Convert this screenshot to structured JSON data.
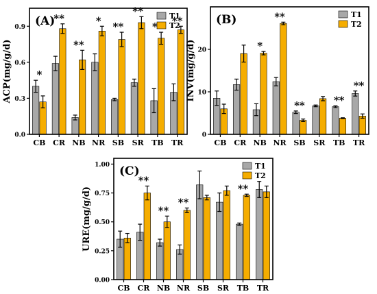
{
  "colors": {
    "T1": "#a8a8a8",
    "T2": "#f5ad00",
    "frame": "#000000"
  },
  "chart_data": [
    {
      "type": "bar",
      "panel_label": "(A)",
      "ylabel": "ACP(mg/g/d)",
      "ylim": [
        0.0,
        1.05
      ],
      "yticks": [
        "0.0",
        "0.3",
        "0.6",
        "0.9"
      ],
      "yticks_values": [
        0.0,
        0.3,
        0.6,
        0.9
      ],
      "categories": [
        "CB",
        "CR",
        "NB",
        "NR",
        "SB",
        "SR",
        "TB",
        "TR"
      ],
      "legend": [
        "T1",
        "T2"
      ],
      "series": [
        {
          "name": "T1",
          "values": [
            0.4,
            0.59,
            0.14,
            0.6,
            0.29,
            0.43,
            0.28,
            0.35
          ],
          "errors": [
            0.05,
            0.06,
            0.02,
            0.07,
            0.01,
            0.03,
            0.1,
            0.07
          ]
        },
        {
          "name": "T2",
          "values": [
            0.27,
            0.88,
            0.62,
            0.86,
            0.79,
            0.93,
            0.8,
            0.87
          ],
          "errors": [
            0.05,
            0.04,
            0.08,
            0.04,
            0.06,
            0.05,
            0.05,
            0.03
          ]
        }
      ],
      "significance": [
        "*",
        "**",
        "**",
        "*",
        "**",
        "**",
        "**",
        "**"
      ]
    },
    {
      "type": "bar",
      "panel_label": "(B)",
      "ylabel": "INV(mg/g/d)",
      "ylim": [
        0,
        30
      ],
      "yticks": [
        "0",
        "10",
        "20"
      ],
      "yticks_values": [
        0,
        10,
        20
      ],
      "categories": [
        "CB",
        "CR",
        "NB",
        "NR",
        "SB",
        "SR",
        "TB",
        "TR"
      ],
      "legend": [
        "T1",
        "T2"
      ],
      "series": [
        {
          "name": "T1",
          "values": [
            8.5,
            11.7,
            5.8,
            12.4,
            5.2,
            6.7,
            6.5,
            9.6
          ],
          "errors": [
            1.7,
            1.3,
            1.4,
            1.0,
            0.3,
            0.2,
            0.2,
            0.6
          ]
        },
        {
          "name": "T2",
          "values": [
            6.0,
            19.0,
            19.1,
            26.1,
            3.3,
            8.4,
            3.8,
            4.3
          ],
          "errors": [
            1.1,
            2.0,
            0.4,
            0.3,
            0.3,
            0.5,
            0.1,
            0.5
          ]
        }
      ],
      "significance": [
        "",
        "",
        "*",
        "**",
        "**",
        "",
        "**",
        "**"
      ]
    },
    {
      "type": "bar",
      "panel_label": "(C)",
      "ylabel": "URE(mg/g/d)",
      "ylim": [
        0.0,
        1.05
      ],
      "yticks": [
        "0.00",
        "0.25",
        "0.50",
        "0.75",
        "1.00"
      ],
      "yticks_values": [
        0.0,
        0.25,
        0.5,
        0.75,
        1.0
      ],
      "categories": [
        "CB",
        "CR",
        "NB",
        "NR",
        "SB",
        "SR",
        "TB",
        "TR"
      ],
      "legend": [
        "T1",
        "T2"
      ],
      "series": [
        {
          "name": "T1",
          "values": [
            0.35,
            0.41,
            0.32,
            0.26,
            0.82,
            0.67,
            0.48,
            0.78
          ],
          "errors": [
            0.07,
            0.07,
            0.03,
            0.04,
            0.12,
            0.08,
            0.01,
            0.07
          ]
        },
        {
          "name": "T2",
          "values": [
            0.36,
            0.75,
            0.5,
            0.6,
            0.71,
            0.77,
            0.73,
            0.76
          ],
          "errors": [
            0.04,
            0.06,
            0.05,
            0.02,
            0.02,
            0.04,
            0.01,
            0.05
          ]
        }
      ],
      "significance": [
        "",
        "**",
        "**",
        "**",
        "",
        "",
        "**",
        ""
      ]
    }
  ]
}
